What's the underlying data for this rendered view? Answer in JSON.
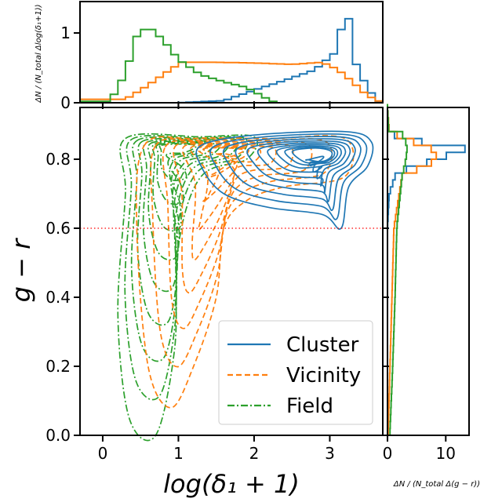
{
  "colors": {
    "cluster": "#1f77b4",
    "vicinity": "#ff7f0e",
    "field": "#2ca02c",
    "threshold": "#ff0000"
  },
  "chart_data": [
    {
      "type": "contour",
      "xlabel": "log(δ₁ + 1)",
      "ylabel": "g − r",
      "xlim": [
        -0.3,
        3.7
      ],
      "ylim": [
        0.0,
        0.95
      ],
      "xticks": [
        "0",
        "1",
        "2",
        "3"
      ],
      "yticks": [
        "0.0",
        "0.2",
        "0.4",
        "0.6",
        "0.8"
      ],
      "threshold_line": {
        "y": 0.6,
        "style": "dotted"
      },
      "legend": {
        "position": "lower-right",
        "entries": [
          {
            "label": "Cluster",
            "style": "solid",
            "color": "#1f77b4"
          },
          {
            "label": "Vicinity",
            "style": "dashed",
            "color": "#ff7f0e"
          },
          {
            "label": "Field",
            "style": "dashdot",
            "color": "#2ca02c"
          }
        ]
      },
      "series": [
        {
          "name": "Cluster",
          "outer": [
            [
              1.3,
              0.84
            ],
            [
              2.0,
              0.87
            ],
            [
              3.2,
              0.88
            ],
            [
              3.55,
              0.85
            ],
            [
              3.5,
              0.78
            ],
            [
              3.25,
              0.72
            ],
            [
              3.15,
              0.6
            ],
            [
              2.9,
              0.64
            ],
            [
              2.2,
              0.66
            ],
            [
              1.6,
              0.7
            ],
            [
              1.3,
              0.78
            ]
          ],
          "inner": [
            [
              2.3,
              0.84
            ],
            [
              3.05,
              0.86
            ],
            [
              3.3,
              0.83
            ],
            [
              3.2,
              0.78
            ],
            [
              2.8,
              0.76
            ],
            [
              2.3,
              0.8
            ]
          ],
          "levels": 10
        },
        {
          "name": "Vicinity",
          "outer": [
            [
              0.55,
              0.84
            ],
            [
              1.2,
              0.86
            ],
            [
              2.2,
              0.86
            ],
            [
              3.2,
              0.86
            ],
            [
              3.2,
              0.75
            ],
            [
              2.4,
              0.72
            ],
            [
              1.9,
              0.68
            ],
            [
              1.6,
              0.6
            ],
            [
              1.5,
              0.4
            ],
            [
              1.2,
              0.2
            ],
            [
              0.9,
              0.08
            ],
            [
              0.6,
              0.2
            ],
            [
              0.45,
              0.6
            ]
          ],
          "inner": [
            [
              1.1,
              0.84
            ],
            [
              1.7,
              0.85
            ],
            [
              2.3,
              0.83
            ],
            [
              1.6,
              0.78
            ],
            [
              1.2,
              0.8
            ]
          ],
          "levels": 8
        },
        {
          "name": "Field",
          "outer": [
            [
              0.3,
              0.86
            ],
            [
              1.3,
              0.865
            ],
            [
              2.0,
              0.865
            ],
            [
              1.9,
              0.8
            ],
            [
              1.3,
              0.75
            ],
            [
              1.0,
              0.55
            ],
            [
              0.95,
              0.25
            ],
            [
              0.7,
              0.0
            ],
            [
              0.35,
              0.05
            ],
            [
              0.2,
              0.35
            ],
            [
              0.3,
              0.7
            ]
          ],
          "inner": [
            [
              0.55,
              0.85
            ],
            [
              1.2,
              0.86
            ],
            [
              1.5,
              0.84
            ],
            [
              1.0,
              0.8
            ],
            [
              0.6,
              0.81
            ]
          ],
          "levels": 9
        }
      ]
    },
    {
      "type": "histogram",
      "ylabel": "ΔN / (N_total Δlog(δ₁+1))",
      "xlim": [
        -0.3,
        3.7
      ],
      "ylim": [
        0,
        1.45
      ],
      "yticks": [
        "0",
        "1"
      ],
      "series": [
        {
          "name": "Cluster",
          "peaks": [
            [
              1.0,
              0.0
            ],
            [
              1.6,
              0.03
            ],
            [
              2.0,
              0.18
            ],
            [
              2.4,
              0.32
            ],
            [
              2.8,
              0.47
            ],
            [
              3.05,
              0.7
            ],
            [
              3.15,
              1.05
            ],
            [
              3.22,
              1.4
            ],
            [
              3.35,
              0.55
            ],
            [
              3.5,
              0.2
            ],
            [
              3.65,
              0.02
            ]
          ]
        },
        {
          "name": "Vicinity",
          "peaks": [
            [
              0.3,
              0.05
            ],
            [
              0.6,
              0.25
            ],
            [
              0.9,
              0.48
            ],
            [
              1.05,
              0.58
            ],
            [
              1.5,
              0.58
            ],
            [
              2.0,
              0.57
            ],
            [
              2.5,
              0.55
            ],
            [
              2.9,
              0.58
            ],
            [
              3.1,
              0.48
            ],
            [
              3.3,
              0.3
            ],
            [
              3.5,
              0.1
            ],
            [
              3.7,
              0.0
            ]
          ]
        },
        {
          "name": "Field",
          "peaks": [
            [
              0.1,
              0.02
            ],
            [
              0.3,
              0.42
            ],
            [
              0.45,
              0.95
            ],
            [
              0.6,
              1.1
            ],
            [
              0.8,
              0.9
            ],
            [
              1.0,
              0.62
            ],
            [
              1.3,
              0.4
            ],
            [
              1.6,
              0.3
            ],
            [
              1.9,
              0.22
            ],
            [
              2.2,
              0.04
            ],
            [
              2.3,
              0.0
            ]
          ]
        }
      ]
    },
    {
      "type": "histogram",
      "orientation": "horizontal",
      "xlabel": "ΔN / (N_total Δ(g − r))",
      "xlim": [
        0,
        14
      ],
      "ylim": [
        0.0,
        0.95
      ],
      "xticks": [
        "0",
        "10"
      ],
      "series": [
        {
          "name": "Cluster",
          "profile": [
            [
              0.0,
              0.0
            ],
            [
              0.6,
              0.0
            ],
            [
              0.7,
              0.3
            ],
            [
              0.76,
              1.5
            ],
            [
              0.8,
              8.5
            ],
            [
              0.83,
              13.3
            ],
            [
              0.86,
              2.2
            ],
            [
              0.88,
              0.2
            ],
            [
              0.95,
              0.0
            ]
          ]
        },
        {
          "name": "Vicinity",
          "profile": [
            [
              0.0,
              0.1
            ],
            [
              0.3,
              0.6
            ],
            [
              0.6,
              1.1
            ],
            [
              0.75,
              2.5
            ],
            [
              0.8,
              8.8
            ],
            [
              0.83,
              7.5
            ],
            [
              0.86,
              3.0
            ],
            [
              0.88,
              0.3
            ],
            [
              0.95,
              0.0
            ]
          ]
        },
        {
          "name": "Field",
          "profile": [
            [
              0.0,
              0.4
            ],
            [
              0.2,
              0.9
            ],
            [
              0.4,
              1.3
            ],
            [
              0.6,
              1.6
            ],
            [
              0.75,
              2.5
            ],
            [
              0.8,
              3.2
            ],
            [
              0.84,
              3.4
            ],
            [
              0.87,
              2.6
            ],
            [
              0.89,
              0.2
            ],
            [
              0.95,
              0.0
            ]
          ]
        }
      ]
    }
  ]
}
